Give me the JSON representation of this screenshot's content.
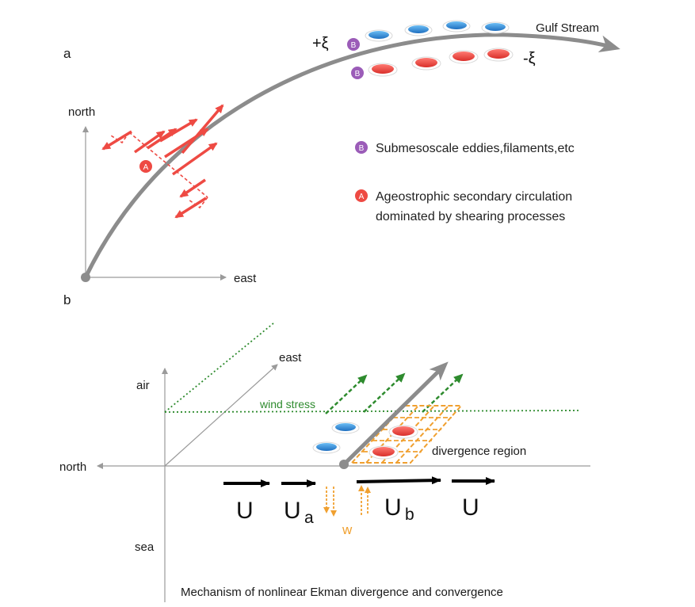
{
  "panel_a": {
    "label": "a",
    "north": "north",
    "east": "east",
    "stream": "Gulf Stream",
    "plus_xi": "+ξ",
    "minus_xi": "-ξ",
    "badge_a": "A",
    "badge_b": "B",
    "legend_b": "Submesoscale eddies,filaments,etc",
    "legend_a_line1": "Ageostrophic secondary circulation",
    "legend_a_line2": "dominated by shearing processes"
  },
  "panel_b": {
    "label": "b",
    "air": "air",
    "east": "east",
    "north": "north",
    "sea": "sea",
    "wind_stress": "wind stress",
    "divergence": "divergence region",
    "u_left": "U",
    "u_a": "U",
    "u_a_sub": "a",
    "u_b": "U",
    "u_b_sub": "b",
    "u_right": "U",
    "w": "w",
    "caption": "Mechanism of nonlinear Ekman divergence and convergence"
  },
  "colors": {
    "stream": "#8c8c8c",
    "red": "#ee4a43",
    "blue": "#2f8fd8",
    "purple": "#9b5cb8",
    "green": "#2e8b2e",
    "orange": "#f0a030",
    "axis": "#9a9a9a"
  }
}
